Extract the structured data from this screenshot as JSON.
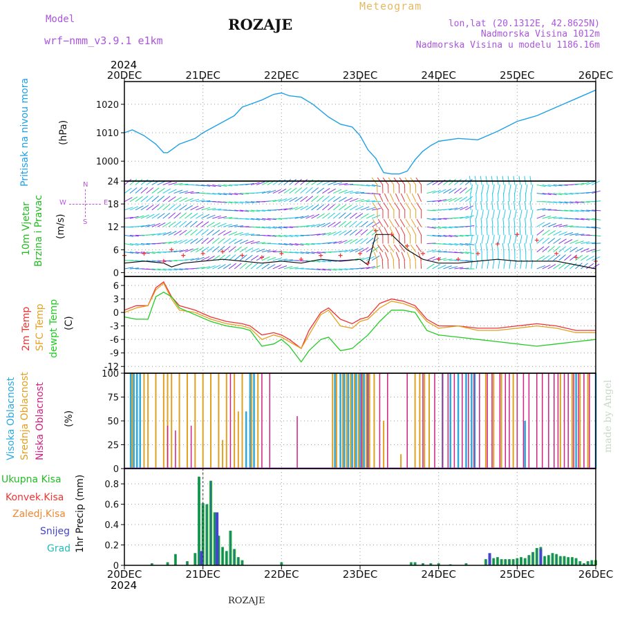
{
  "header": {
    "model_label": "Model",
    "model_name": "wrf−nmm_v3.9.1  e1km",
    "title": "ROZAJE",
    "meteogram": "Meteogram",
    "lonlat": "lon,lat (20.1312E, 42.8625N)",
    "elev": "Nadmorska Visina 1012m",
    "elev_model": "Nadmorska Visina u modelu 1186.16m",
    "year_top": "2024",
    "year_bottom": "2024",
    "footer": "ROZAJE",
    "watermark": "made by Angel"
  },
  "colors": {
    "pressure": "#1ea0e6",
    "wind_label": "#22bb22",
    "temp2m": "#ee3333",
    "sfc": "#e6a020",
    "dewp": "#22cc22",
    "high": "#2aa8e0",
    "mid": "#e0a020",
    "low": "#d02080",
    "total": "#22bb22",
    "conv": "#ee3333",
    "frozen": "#ee8833",
    "snow": "#4444cc",
    "grad": "#22bbbb",
    "legend_purple": "#bb55dd"
  },
  "panel_labels": {
    "pressure": [
      "Pritisak na nivou mora",
      "(hPa)"
    ],
    "wind": [
      "10m Vjetar",
      "Brzina i Pravac",
      "(m/s)"
    ],
    "temp": [
      "2m Temp",
      "SFC Temp",
      "dewpt Temp",
      "(C)"
    ],
    "cloud": [
      "Visoka Oblacnost",
      "Srednja Oblacnost",
      "Niska Oblacnost",
      "(%)"
    ],
    "precip": [
      "1hr Precip (mm)"
    ],
    "precip_legend": [
      "Ukupna Kisa",
      "Konvek.Kisa",
      "Zaledj.Kisa",
      "Snijeg",
      "Grad"
    ],
    "compass": [
      "N",
      "E",
      "W",
      "S"
    ]
  },
  "chart_data": [
    {
      "type": "line",
      "name": "pressure",
      "x_ticks": [
        "20DEC",
        "21DEC",
        "22DEC",
        "23DEC",
        "24DEC",
        "25DEC",
        "26DEC"
      ],
      "ylim": [
        993,
        1028
      ],
      "y_ticks": [
        1000,
        1010,
        1020
      ],
      "grid": true,
      "x_days": [
        0,
        0.1,
        0.25,
        0.4,
        0.5,
        0.55,
        0.7,
        0.9,
        1.0,
        1.2,
        1.4,
        1.5,
        1.6,
        1.75,
        1.9,
        2.0,
        2.1,
        2.25,
        2.4,
        2.6,
        2.75,
        2.9,
        3.0,
        3.1,
        3.2,
        3.3,
        3.4,
        3.5,
        3.6,
        3.7,
        3.8,
        3.9,
        4.0,
        4.25,
        4.5,
        4.75,
        5.0,
        5.25,
        5.5,
        5.75,
        6.0
      ],
      "series": [
        {
          "values": [
            1010,
            1011,
            1009,
            1006,
            1003,
            1003,
            1006,
            1008,
            1010,
            1013,
            1016,
            1019,
            1020,
            1021.5,
            1023.5,
            1024,
            1023,
            1022.5,
            1020,
            1015.5,
            1013,
            1012,
            1009,
            1004,
            1001,
            996,
            995.5,
            995.5,
            996.5,
            1000.5,
            1003.5,
            1005.5,
            1007,
            1008,
            1007.5,
            1010.5,
            1014,
            1016,
            1019,
            1022,
            1025
          ]
        }
      ]
    },
    {
      "type": "line",
      "name": "wind",
      "ylim": [
        -1,
        24
      ],
      "y_ticks": [
        0,
        6,
        12,
        18,
        24
      ],
      "grid": true,
      "x_days": [
        0,
        0.25,
        0.5,
        0.6,
        0.75,
        1.0,
        1.25,
        1.5,
        1.75,
        2.0,
        2.25,
        2.5,
        2.75,
        3.0,
        3.1,
        3.2,
        3.4,
        3.6,
        3.8,
        4.0,
        4.25,
        4.5,
        4.75,
        5.0,
        5.25,
        5.5,
        5.75,
        6.0
      ],
      "series": [
        {
          "name": "speed",
          "values": [
            2.5,
            3,
            2.5,
            1.5,
            2.5,
            3,
            3.5,
            3,
            2.5,
            3,
            2.5,
            3.5,
            3,
            3.5,
            2,
            10,
            10,
            6,
            3.5,
            2.5,
            2.5,
            3,
            3.5,
            3,
            3,
            3,
            2,
            1
          ]
        },
        {
          "name": "gust",
          "values": [
            4.5,
            5,
            3,
            6,
            4.5,
            5,
            5.5,
            4.5,
            4,
            5,
            3.5,
            4.5,
            4.5,
            5,
            2.5,
            11,
            10,
            7,
            5,
            3.5,
            3.5,
            5,
            7.5,
            10,
            8.5,
            5,
            4,
            3
          ]
        }
      ]
    },
    {
      "type": "line",
      "name": "temperature",
      "ylim": [
        -13.5,
        8
      ],
      "y_ticks": [
        -12,
        -9,
        -6,
        -3,
        0,
        3,
        6
      ],
      "grid": true,
      "x_days": [
        0,
        0.15,
        0.3,
        0.4,
        0.5,
        0.6,
        0.7,
        0.9,
        1.1,
        1.3,
        1.5,
        1.6,
        1.75,
        1.9,
        2.0,
        2.1,
        2.25,
        2.35,
        2.5,
        2.6,
        2.75,
        2.9,
        3.0,
        3.1,
        3.25,
        3.4,
        3.55,
        3.7,
        3.85,
        4.0,
        4.25,
        4.5,
        4.75,
        5.0,
        5.25,
        5.5,
        5.75,
        6.0
      ],
      "series": [
        {
          "name": "2m Temp",
          "values": [
            0.5,
            1.5,
            1.5,
            5.5,
            6.8,
            3.5,
            1.5,
            0.5,
            -1,
            -2,
            -2.5,
            -3,
            -5,
            -4.5,
            -5,
            -6,
            -8,
            -4,
            0,
            1,
            -1.5,
            -2.5,
            -1.5,
            -1,
            2,
            3,
            2.5,
            1.5,
            -1.5,
            -3,
            -3,
            -3.5,
            -3.5,
            -3,
            -2.5,
            -3,
            -4,
            -4
          ]
        },
        {
          "name": "SFC Temp",
          "values": [
            0,
            1,
            1.5,
            5,
            6.5,
            3,
            0.5,
            0,
            -1.5,
            -2.5,
            -3,
            -3.5,
            -6,
            -5,
            -5.5,
            -6.5,
            -8,
            -5,
            -0.5,
            0.5,
            -3,
            -3.5,
            -2,
            -1.5,
            1,
            2.5,
            2,
            1,
            -2,
            -3.5,
            -3,
            -4,
            -4,
            -3.5,
            -3,
            -3.5,
            -4.5,
            -4.5
          ]
        },
        {
          "name": "dewpt Temp",
          "values": [
            -1,
            -1.5,
            -1.5,
            3.5,
            4.5,
            3.5,
            1,
            -0.5,
            -2,
            -3,
            -3.5,
            -4,
            -7.5,
            -7,
            -6,
            -7.5,
            -11,
            -8.5,
            -6,
            -5.5,
            -8.5,
            -8,
            -6.5,
            -5,
            -2,
            0.5,
            0.5,
            0,
            -4,
            -5,
            -5.5,
            -6,
            -6.5,
            -7,
            -7.5,
            -7,
            -6.5,
            -6
          ]
        }
      ]
    },
    {
      "type": "bar",
      "name": "cloud",
      "ylim": [
        0,
        100
      ],
      "y_ticks": [
        0,
        25,
        50,
        75,
        100
      ],
      "grid": true,
      "series": [
        {
          "name": "high",
          "x_days": [
            0.08,
            0.12,
            0.16,
            0.2,
            1.55,
            1.6,
            1.65,
            2.68,
            2.75,
            2.8,
            2.85,
            2.9,
            2.95,
            3.0,
            3.05,
            3.1,
            4.05,
            4.15,
            4.25,
            4.35,
            4.42,
            4.46,
            5.1,
            5.75,
            6.0
          ],
          "values": [
            100,
            100,
            100,
            100,
            60,
            100,
            100,
            100,
            100,
            100,
            100,
            100,
            100,
            100,
            100,
            100,
            100,
            100,
            100,
            100,
            100,
            100,
            50,
            100,
            100
          ]
        },
        {
          "name": "mid",
          "x_days": [
            0.1,
            0.25,
            0.3,
            0.4,
            0.5,
            0.55,
            0.6,
            0.7,
            0.8,
            0.9,
            1.0,
            1.1,
            1.2,
            1.25,
            1.3,
            1.4,
            1.45,
            1.5,
            1.62,
            1.7,
            2.65,
            2.7,
            2.78,
            2.83,
            2.88,
            2.93,
            2.98,
            3.03,
            3.08,
            3.12,
            3.18,
            3.3,
            3.52,
            3.7,
            3.76,
            3.82,
            3.88,
            4.6,
            4.7,
            4.8,
            4.95,
            5.55,
            5.7,
            5.8,
            5.9
          ],
          "values": [
            100,
            100,
            100,
            100,
            100,
            100,
            100,
            100,
            100,
            100,
            100,
            100,
            100,
            30,
            100,
            100,
            60,
            100,
            100,
            100,
            100,
            100,
            100,
            100,
            100,
            100,
            100,
            100,
            100,
            100,
            100,
            50,
            15,
            100,
            100,
            100,
            100,
            100,
            100,
            100,
            100,
            100,
            100,
            100,
            100
          ]
        },
        {
          "name": "low",
          "x_days": [
            0.55,
            0.65,
            0.85,
            1.35,
            1.75,
            1.85,
            2.2,
            3.02,
            3.1,
            3.25,
            3.35,
            3.6,
            3.8,
            3.95,
            4.05,
            4.12,
            4.2,
            4.3,
            4.38,
            4.45,
            4.52,
            4.62,
            4.68,
            4.78,
            4.85,
            4.9,
            5.0,
            5.08,
            5.15,
            5.25,
            5.32,
            5.4,
            5.47,
            5.52,
            5.6,
            5.65,
            5.72,
            5.78,
            5.85,
            5.92
          ],
          "values": [
            45,
            40,
            45,
            100,
            100,
            100,
            55,
            100,
            100,
            100,
            100,
            100,
            100,
            100,
            100,
            100,
            100,
            100,
            100,
            100,
            100,
            100,
            100,
            100,
            100,
            100,
            100,
            100,
            100,
            100,
            100,
            100,
            100,
            100,
            100,
            100,
            100,
            100,
            100,
            100
          ]
        }
      ]
    },
    {
      "type": "bar",
      "name": "precip",
      "ylim": [
        0,
        0.95
      ],
      "y_ticks": [
        0,
        0.2,
        0.4,
        0.6,
        0.8
      ],
      "grid": true,
      "series": [
        {
          "name": "Ukupna Kisa",
          "x_days": [
            0.35,
            0.55,
            0.65,
            0.8,
            0.9,
            0.95,
            1.0,
            1.05,
            1.1,
            1.15,
            1.2,
            1.25,
            1.3,
            1.35,
            1.4,
            1.45,
            1.5,
            2.0,
            3.65,
            3.7,
            3.8,
            3.9,
            4.0,
            4.15,
            4.35,
            4.6,
            4.65,
            4.7,
            4.75,
            4.8,
            4.85,
            4.9,
            4.95,
            5.0,
            5.05,
            5.1,
            5.15,
            5.2,
            5.25,
            5.3,
            5.35,
            5.4,
            5.45,
            5.5,
            5.55,
            5.6,
            5.65,
            5.7,
            5.75,
            5.8,
            5.85,
            5.9,
            5.95,
            6.0
          ],
          "values": [
            0.02,
            0.03,
            0.11,
            0.04,
            0.12,
            0.87,
            0.61,
            0.6,
            0.83,
            0.52,
            0.29,
            0.18,
            0.14,
            0.34,
            0.16,
            0.08,
            0.05,
            0.03,
            0.03,
            0.03,
            0.02,
            0.02,
            0.02,
            0.01,
            0.02,
            0.06,
            0.1,
            0.07,
            0.08,
            0.06,
            0.06,
            0.06,
            0.06,
            0.07,
            0.08,
            0.07,
            0.1,
            0.13,
            0.17,
            0.18,
            0.09,
            0.1,
            0.12,
            0.11,
            0.09,
            0.09,
            0.08,
            0.08,
            0.07,
            0.04,
            0.02,
            0.04,
            0.05,
            0.05
          ]
        },
        {
          "name": "Snijeg",
          "x_days": [
            0.98,
            1.18,
            4.65,
            5.3
          ],
          "values": [
            0.14,
            0.52,
            0.12,
            0.16
          ]
        }
      ]
    }
  ]
}
